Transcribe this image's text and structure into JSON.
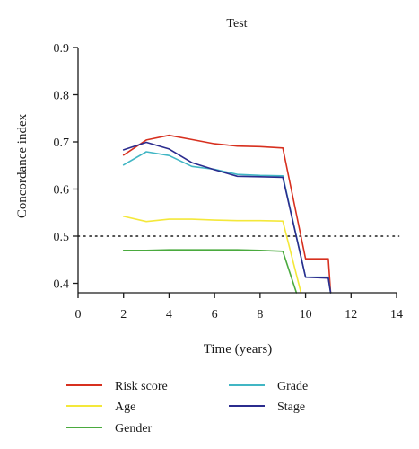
{
  "chart_data": {
    "type": "line",
    "title": "Test",
    "xlabel": "Time (years)",
    "ylabel": "Concordance index",
    "xlim": [
      0,
      14
    ],
    "ylim": [
      0.38,
      0.9
    ],
    "xticks": [
      0,
      2,
      4,
      6,
      8,
      10,
      12,
      14
    ],
    "yticks": [
      0.4,
      0.5,
      0.6,
      0.7,
      0.8,
      0.9
    ],
    "xtick_labels": [
      "0",
      "2",
      "4",
      "6",
      "8",
      "10",
      "12",
      "14"
    ],
    "ytick_labels": [
      "0.4",
      "0.5",
      "0.6",
      "0.7",
      "0.8",
      "0.9"
    ],
    "reference_line": {
      "y": 0.5,
      "style": "dotted"
    },
    "grid": false,
    "legend_position": "bottom",
    "series": [
      {
        "name": "Risk score",
        "color": "#d7301f",
        "points": [
          [
            2,
            0.672
          ],
          [
            3,
            0.704
          ],
          [
            4,
            0.714
          ],
          [
            5,
            0.705
          ],
          [
            6,
            0.696
          ],
          [
            7,
            0.691
          ],
          [
            8,
            0.69
          ],
          [
            9,
            0.687
          ],
          [
            10,
            0.452
          ],
          [
            11,
            0.452
          ],
          [
            11.1,
            0.38
          ]
        ]
      },
      {
        "name": "Grade",
        "color": "#41b6c4",
        "points": [
          [
            2,
            0.651
          ],
          [
            3,
            0.679
          ],
          [
            4,
            0.671
          ],
          [
            5,
            0.648
          ],
          [
            6,
            0.642
          ],
          [
            7,
            0.631
          ],
          [
            8,
            0.629
          ],
          [
            9,
            0.628
          ],
          [
            10,
            0.413
          ],
          [
            11,
            0.413
          ],
          [
            11.1,
            0.38
          ]
        ]
      },
      {
        "name": "Age",
        "color": "#f4e83a",
        "points": [
          [
            2,
            0.542
          ],
          [
            3,
            0.531
          ],
          [
            4,
            0.536
          ],
          [
            5,
            0.536
          ],
          [
            6,
            0.534
          ],
          [
            7,
            0.533
          ],
          [
            8,
            0.533
          ],
          [
            9,
            0.532
          ],
          [
            9.8,
            0.38
          ]
        ]
      },
      {
        "name": "Stage",
        "color": "#2b2c8e",
        "points": [
          [
            2,
            0.683
          ],
          [
            3,
            0.699
          ],
          [
            4,
            0.685
          ],
          [
            5,
            0.656
          ],
          [
            6,
            0.641
          ],
          [
            7,
            0.627
          ],
          [
            8,
            0.626
          ],
          [
            9,
            0.625
          ],
          [
            10,
            0.413
          ],
          [
            11,
            0.411
          ],
          [
            11.1,
            0.38
          ]
        ]
      },
      {
        "name": "Gender",
        "color": "#4aaa3e",
        "points": [
          [
            2,
            0.47
          ],
          [
            3,
            0.47
          ],
          [
            4,
            0.471
          ],
          [
            5,
            0.471
          ],
          [
            6,
            0.471
          ],
          [
            7,
            0.471
          ],
          [
            8,
            0.47
          ],
          [
            9,
            0.468
          ],
          [
            9.6,
            0.38
          ]
        ]
      }
    ]
  }
}
